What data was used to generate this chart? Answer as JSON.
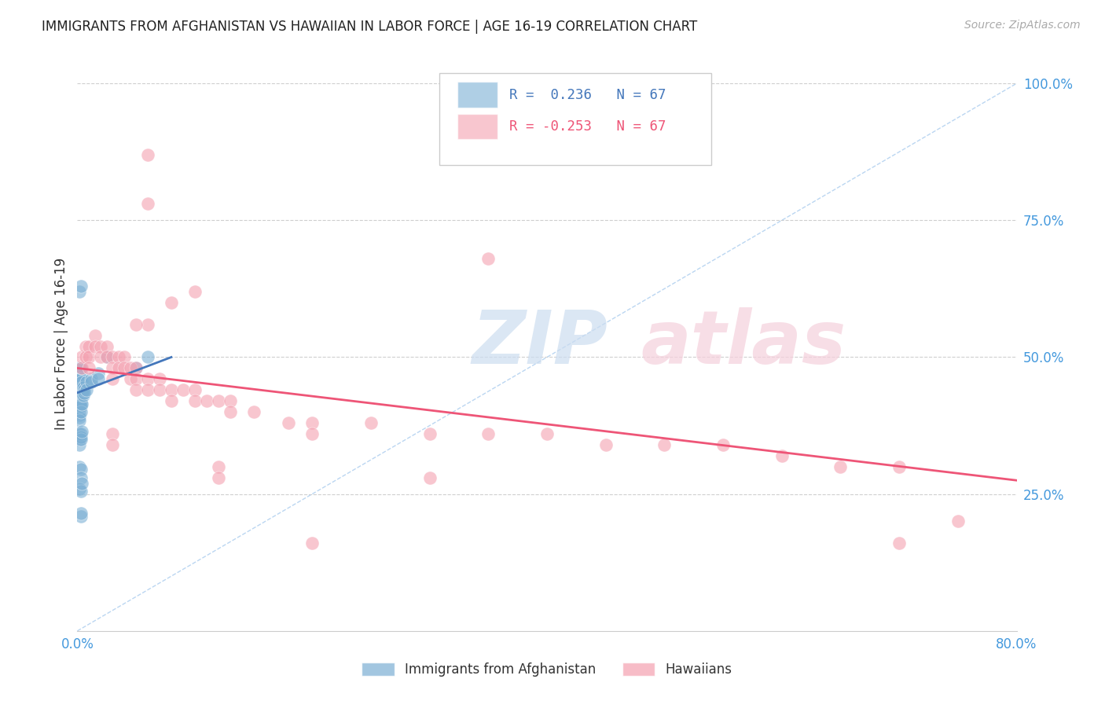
{
  "title": "IMMIGRANTS FROM AFGHANISTAN VS HAWAIIAN IN LABOR FORCE | AGE 16-19 CORRELATION CHART",
  "source_text": "Source: ZipAtlas.com",
  "ylabel": "In Labor Force | Age 16-19",
  "xlim": [
    0.0,
    0.8
  ],
  "ylim": [
    0.0,
    1.05
  ],
  "yticks": [
    0.25,
    0.5,
    0.75,
    1.0
  ],
  "ytick_labels": [
    "25.0%",
    "50.0%",
    "75.0%",
    "100.0%"
  ],
  "xticks": [
    0.0,
    0.1,
    0.2,
    0.3,
    0.4,
    0.5,
    0.6,
    0.7,
    0.8
  ],
  "xtick_labels": [
    "0.0%",
    "",
    "",
    "",
    "",
    "",
    "",
    "",
    "80.0%"
  ],
  "legend_r_blue": "R =  0.236",
  "legend_n_blue": "N = 67",
  "legend_r_pink": "R = -0.253",
  "legend_n_pink": "N = 67",
  "blue_color": "#7BAFD4",
  "pink_color": "#F4A0B0",
  "blue_line_color": "#4477BB",
  "pink_line_color": "#EE5577",
  "title_color": "#222222",
  "axis_label_color": "#333333",
  "tick_color": "#4499DD",
  "grid_color": "#BBBBBB",
  "blue_line_x": [
    0.0,
    0.08
  ],
  "blue_line_y": [
    0.435,
    0.5
  ],
  "pink_line_x": [
    0.0,
    0.8
  ],
  "pink_line_y": [
    0.48,
    0.275
  ],
  "dashed_line_x": [
    0.0,
    0.8
  ],
  "dashed_line_y": [
    0.0,
    1.0
  ],
  "legend_entries": [
    "Immigrants from Afghanistan",
    "Hawaiians"
  ],
  "blue_scatter": [
    [
      0.002,
      0.435
    ],
    [
      0.002,
      0.44
    ],
    [
      0.002,
      0.43
    ],
    [
      0.002,
      0.445
    ],
    [
      0.002,
      0.42
    ],
    [
      0.002,
      0.41
    ],
    [
      0.002,
      0.415
    ],
    [
      0.002,
      0.425
    ],
    [
      0.002,
      0.4
    ],
    [
      0.002,
      0.395
    ],
    [
      0.002,
      0.39
    ],
    [
      0.002,
      0.385
    ],
    [
      0.002,
      0.455
    ],
    [
      0.002,
      0.46
    ],
    [
      0.002,
      0.465
    ],
    [
      0.002,
      0.47
    ],
    [
      0.002,
      0.45
    ],
    [
      0.002,
      0.48
    ],
    [
      0.002,
      0.435
    ],
    [
      0.003,
      0.44
    ],
    [
      0.003,
      0.43
    ],
    [
      0.003,
      0.42
    ],
    [
      0.003,
      0.445
    ],
    [
      0.003,
      0.435
    ],
    [
      0.003,
      0.415
    ],
    [
      0.003,
      0.41
    ],
    [
      0.003,
      0.4
    ],
    [
      0.003,
      0.455
    ],
    [
      0.003,
      0.47
    ],
    [
      0.003,
      0.46
    ],
    [
      0.003,
      0.48
    ],
    [
      0.004,
      0.44
    ],
    [
      0.004,
      0.43
    ],
    [
      0.004,
      0.435
    ],
    [
      0.004,
      0.445
    ],
    [
      0.004,
      0.415
    ],
    [
      0.004,
      0.455
    ],
    [
      0.005,
      0.445
    ],
    [
      0.005,
      0.43
    ],
    [
      0.006,
      0.44
    ],
    [
      0.006,
      0.435
    ],
    [
      0.008,
      0.455
    ],
    [
      0.008,
      0.44
    ],
    [
      0.012,
      0.46
    ],
    [
      0.012,
      0.455
    ],
    [
      0.018,
      0.47
    ],
    [
      0.018,
      0.46
    ],
    [
      0.025,
      0.5
    ],
    [
      0.05,
      0.48
    ],
    [
      0.06,
      0.5
    ],
    [
      0.002,
      0.36
    ],
    [
      0.002,
      0.35
    ],
    [
      0.002,
      0.34
    ],
    [
      0.003,
      0.36
    ],
    [
      0.003,
      0.355
    ],
    [
      0.003,
      0.35
    ],
    [
      0.004,
      0.365
    ],
    [
      0.002,
      0.62
    ],
    [
      0.003,
      0.63
    ],
    [
      0.002,
      0.3
    ],
    [
      0.003,
      0.295
    ],
    [
      0.003,
      0.28
    ],
    [
      0.002,
      0.26
    ],
    [
      0.003,
      0.255
    ],
    [
      0.004,
      0.27
    ],
    [
      0.003,
      0.21
    ],
    [
      0.003,
      0.215
    ]
  ],
  "pink_scatter": [
    [
      0.004,
      0.5
    ],
    [
      0.004,
      0.48
    ],
    [
      0.007,
      0.52
    ],
    [
      0.007,
      0.5
    ],
    [
      0.01,
      0.52
    ],
    [
      0.01,
      0.5
    ],
    [
      0.01,
      0.48
    ],
    [
      0.015,
      0.54
    ],
    [
      0.015,
      0.52
    ],
    [
      0.02,
      0.52
    ],
    [
      0.02,
      0.5
    ],
    [
      0.025,
      0.52
    ],
    [
      0.025,
      0.5
    ],
    [
      0.03,
      0.5
    ],
    [
      0.03,
      0.48
    ],
    [
      0.03,
      0.46
    ],
    [
      0.035,
      0.5
    ],
    [
      0.035,
      0.48
    ],
    [
      0.04,
      0.5
    ],
    [
      0.04,
      0.48
    ],
    [
      0.045,
      0.48
    ],
    [
      0.045,
      0.46
    ],
    [
      0.05,
      0.48
    ],
    [
      0.05,
      0.46
    ],
    [
      0.05,
      0.44
    ],
    [
      0.06,
      0.46
    ],
    [
      0.06,
      0.44
    ],
    [
      0.07,
      0.46
    ],
    [
      0.07,
      0.44
    ],
    [
      0.08,
      0.44
    ],
    [
      0.08,
      0.42
    ],
    [
      0.09,
      0.44
    ],
    [
      0.1,
      0.44
    ],
    [
      0.1,
      0.42
    ],
    [
      0.11,
      0.42
    ],
    [
      0.12,
      0.42
    ],
    [
      0.13,
      0.42
    ],
    [
      0.13,
      0.4
    ],
    [
      0.15,
      0.4
    ],
    [
      0.18,
      0.38
    ],
    [
      0.2,
      0.38
    ],
    [
      0.2,
      0.36
    ],
    [
      0.25,
      0.38
    ],
    [
      0.3,
      0.36
    ],
    [
      0.35,
      0.36
    ],
    [
      0.4,
      0.36
    ],
    [
      0.45,
      0.34
    ],
    [
      0.5,
      0.34
    ],
    [
      0.55,
      0.34
    ],
    [
      0.6,
      0.32
    ],
    [
      0.65,
      0.3
    ],
    [
      0.7,
      0.3
    ],
    [
      0.75,
      0.2
    ],
    [
      0.03,
      0.36
    ],
    [
      0.03,
      0.34
    ],
    [
      0.06,
      0.56
    ],
    [
      0.08,
      0.6
    ],
    [
      0.05,
      0.56
    ],
    [
      0.1,
      0.62
    ],
    [
      0.35,
      0.68
    ],
    [
      0.06,
      0.78
    ],
    [
      0.06,
      0.87
    ],
    [
      0.12,
      0.3
    ],
    [
      0.12,
      0.28
    ],
    [
      0.3,
      0.28
    ],
    [
      0.2,
      0.16
    ],
    [
      0.7,
      0.16
    ]
  ]
}
